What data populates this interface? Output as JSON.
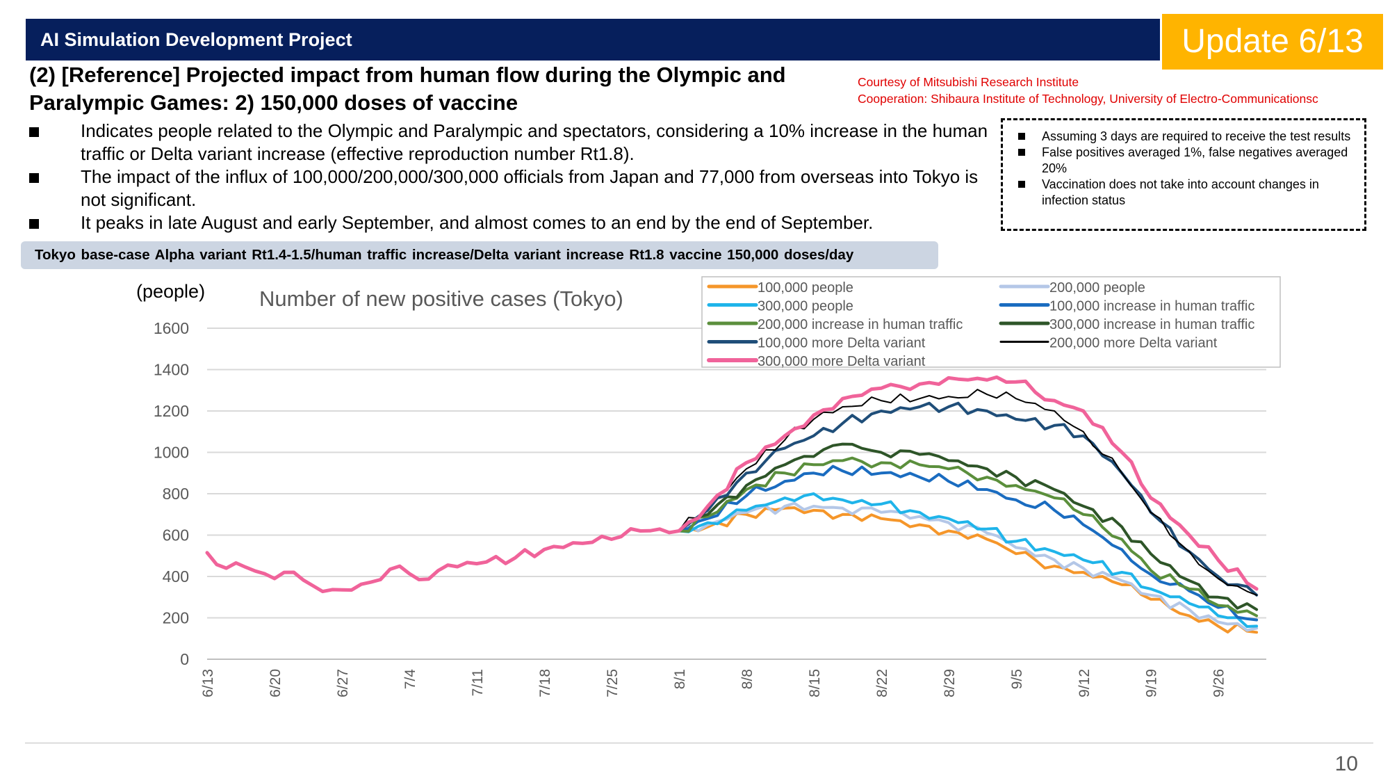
{
  "header": {
    "title": "AI Simulation Development Project",
    "badge": "Update 6/13"
  },
  "slide": {
    "title": "(2) [Reference] Projected impact from human flow during the Olympic and Paralympic Games: 2) 150,000 doses of vaccine",
    "credit_1": "Courtesy of Mitsubishi Research Institute",
    "credit_2": "Cooperation: Shibaura Institute of Technology, University of Electro-Communicationsc",
    "bullets": [
      "Indicates people related to the Olympic and Paralympic and spectators, considering a 10% increase in the human traffic or Delta variant increase (effective reproduction number Rt1.8).",
      "The impact of the influx of 100,000/200,000/300,000 officials from Japan and 77,000 from overseas into Tokyo is not significant.",
      "It peaks in late August and early September, and almost comes to an end by the end of September."
    ],
    "notes": [
      "Assuming 3 days are required to receive the test results",
      "False positives averaged 1%, false negatives averaged 20%",
      "Vaccination does not take into account changes in infection status"
    ],
    "scenario": "Tokyo base-case Alpha variant Rt1.4-1.5/human traffic increase/Delta variant increase Rt1.8 vaccine 150,000 doses/day",
    "page_number": "10"
  },
  "chart_data": {
    "type": "line",
    "title": "Number of new positive cases (Tokyo)",
    "ylabel": "(people)",
    "xlabel": "",
    "ylim": [
      0,
      1600
    ],
    "yticks": [
      0,
      200,
      400,
      600,
      800,
      1000,
      1200,
      1400,
      1600
    ],
    "x_start": "6/13",
    "x_end": "10/1",
    "xtick_labels": [
      "6/13",
      "6/20",
      "6/27",
      "7/4",
      "7/11",
      "7/18",
      "7/25",
      "8/1",
      "8/8",
      "8/15",
      "8/22",
      "8/29",
      "9/5",
      "9/12",
      "9/19",
      "9/26"
    ],
    "grid": true,
    "legend_position": "top-right",
    "baseline": {
      "x": [
        "6/13",
        "6/15",
        "6/17",
        "6/20",
        "6/22",
        "6/24",
        "6/27",
        "7/1",
        "7/3",
        "7/5",
        "7/8",
        "7/12",
        "7/15",
        "7/19",
        "7/22",
        "7/25",
        "7/28",
        "8/1"
      ],
      "y": [
        515,
        440,
        445,
        390,
        420,
        355,
        335,
        385,
        450,
        385,
        455,
        470,
        490,
        545,
        560,
        580,
        620,
        620
      ]
    },
    "series": [
      {
        "name": "100,000 people",
        "color": "#f5962a",
        "width": 4,
        "x": [
          "8/1",
          "8/4",
          "8/8",
          "8/12",
          "8/15",
          "8/18",
          "8/22",
          "8/26",
          "8/29",
          "9/2",
          "9/5",
          "9/9",
          "9/12",
          "9/16",
          "9/19",
          "9/23",
          "9/26",
          "9/30"
        ],
        "y": [
          620,
          640,
          700,
          730,
          720,
          700,
          680,
          650,
          620,
          580,
          510,
          450,
          420,
          360,
          290,
          210,
          160,
          130
        ]
      },
      {
        "name": "200,000 people",
        "color": "#b4c7e7",
        "width": 4,
        "x": [
          "8/1",
          "8/4",
          "8/8",
          "8/12",
          "8/15",
          "8/18",
          "8/22",
          "8/26",
          "8/29",
          "9/2",
          "9/5",
          "9/9",
          "9/12",
          "9/16",
          "9/19",
          "9/23",
          "9/26",
          "9/30"
        ],
        "y": [
          620,
          650,
          710,
          740,
          740,
          730,
          710,
          690,
          660,
          610,
          540,
          480,
          440,
          380,
          310,
          240,
          180,
          150
        ]
      },
      {
        "name": "300,000 people",
        "color": "#1fb4ea",
        "width": 4,
        "x": [
          "8/1",
          "8/4",
          "8/8",
          "8/12",
          "8/15",
          "8/18",
          "8/22",
          "8/26",
          "8/29",
          "9/2",
          "9/5",
          "9/9",
          "9/12",
          "9/16",
          "9/19",
          "9/23",
          "9/26",
          "9/30"
        ],
        "y": [
          620,
          660,
          720,
          780,
          800,
          770,
          750,
          710,
          680,
          630,
          570,
          520,
          480,
          420,
          340,
          270,
          210,
          160
        ]
      },
      {
        "name": "100,000 increase in human traffic",
        "color": "#1a6cc0",
        "width": 4,
        "x": [
          "8/1",
          "8/4",
          "8/8",
          "8/12",
          "8/15",
          "8/18",
          "8/22",
          "8/26",
          "8/29",
          "9/2",
          "9/5",
          "9/9",
          "9/12",
          "9/16",
          "9/19",
          "9/23",
          "9/26",
          "9/30"
        ],
        "y": [
          620,
          680,
          790,
          860,
          900,
          910,
          900,
          880,
          860,
          820,
          770,
          720,
          650,
          530,
          410,
          330,
          250,
          190
        ]
      },
      {
        "name": "200,000 increase in human traffic",
        "color": "#5b8f3c",
        "width": 4,
        "x": [
          "8/1",
          "8/4",
          "8/8",
          "8/12",
          "8/15",
          "8/18",
          "8/22",
          "8/26",
          "8/29",
          "9/2",
          "9/5",
          "9/9",
          "9/12",
          "9/16",
          "9/19",
          "9/23",
          "9/26",
          "9/30"
        ],
        "y": [
          620,
          690,
          820,
          900,
          940,
          960,
          950,
          940,
          920,
          880,
          840,
          780,
          700,
          580,
          430,
          340,
          260,
          210
        ]
      },
      {
        "name": "300,000 increase in human traffic",
        "color": "#2e5528",
        "width": 4,
        "x": [
          "8/1",
          "8/4",
          "8/8",
          "8/12",
          "8/15",
          "8/18",
          "8/22",
          "8/26",
          "8/29",
          "9/2",
          "9/5",
          "9/9",
          "9/12",
          "9/16",
          "9/19",
          "9/23",
          "9/26",
          "9/30"
        ],
        "y": [
          620,
          700,
          840,
          940,
          980,
          1040,
          1000,
          990,
          960,
          920,
          880,
          820,
          740,
          640,
          510,
          380,
          300,
          240
        ]
      },
      {
        "name": "100,000 more Delta variant",
        "color": "#1f4e79",
        "width": 4,
        "x": [
          "8/1",
          "8/4",
          "8/8",
          "8/12",
          "8/15",
          "8/18",
          "8/22",
          "8/26",
          "8/29",
          "9/2",
          "9/5",
          "9/9",
          "9/12",
          "9/16",
          "9/19",
          "9/23",
          "9/26",
          "9/30"
        ],
        "y": [
          620,
          720,
          900,
          1020,
          1080,
          1140,
          1200,
          1220,
          1220,
          1200,
          1160,
          1130,
          1080,
          900,
          710,
          520,
          400,
          310
        ]
      },
      {
        "name": "200,000 more Delta variant",
        "color": "#000000",
        "width": 2,
        "x": [
          "8/1",
          "8/4",
          "8/8",
          "8/12",
          "8/15",
          "8/18",
          "8/22",
          "8/26",
          "8/29",
          "9/2",
          "9/5",
          "9/9",
          "9/12",
          "9/16",
          "9/19",
          "9/23",
          "9/26",
          "9/30"
        ],
        "y": [
          620,
          730,
          920,
          1060,
          1160,
          1220,
          1250,
          1260,
          1270,
          1280,
          1260,
          1200,
          1100,
          900,
          710,
          520,
          390,
          310
        ]
      },
      {
        "name": "300,000 more Delta variant",
        "color": "#f0639a",
        "width": 5,
        "x": [
          "8/1",
          "8/4",
          "8/8",
          "8/12",
          "8/15",
          "8/18",
          "8/22",
          "8/26",
          "8/29",
          "9/2",
          "9/5",
          "9/9",
          "9/12",
          "9/16",
          "9/19",
          "9/23",
          "9/26",
          "9/30"
        ],
        "y": [
          620,
          740,
          950,
          1080,
          1180,
          1260,
          1310,
          1330,
          1360,
          1350,
          1340,
          1250,
          1200,
          1000,
          780,
          600,
          480,
          340
        ]
      }
    ]
  }
}
